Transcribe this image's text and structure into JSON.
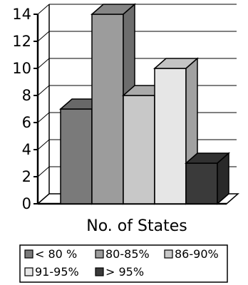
{
  "chart_data": {
    "type": "bar",
    "categories": [
      "No. of States"
    ],
    "series": [
      {
        "name": "< 80 %",
        "values": [
          7
        ],
        "color": "#7a7a7a"
      },
      {
        "name": "80-85%",
        "values": [
          14
        ],
        "color": "#9c9c9c"
      },
      {
        "name": "86-90%",
        "values": [
          8
        ],
        "color": "#c8c8c8"
      },
      {
        "name": "91-95%",
        "values": [
          10
        ],
        "color": "#e6e6e6"
      },
      {
        "name": "> 95%",
        "values": [
          3
        ],
        "color": "#3a3a3a"
      }
    ],
    "y_ticks": [
      "0",
      "2",
      "4",
      "6",
      "8",
      "10",
      "12",
      "14"
    ],
    "xlabel": "No. of States",
    "ylabel": "",
    "ylim": [
      0,
      14
    ],
    "grid": true,
    "three_d": true,
    "legend_position": "bottom"
  }
}
